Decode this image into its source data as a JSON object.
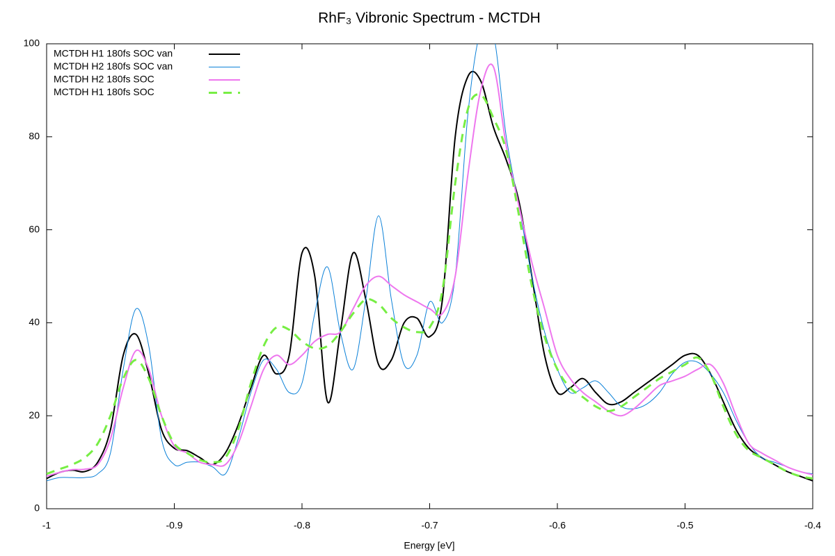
{
  "chart_data": {
    "type": "line",
    "title": "RhF₃ Vibronic Spectrum - MCTDH",
    "xlabel": "Energy [eV]",
    "x": [
      -1,
      -0.99,
      -0.98,
      -0.97,
      -0.96,
      -0.95,
      -0.94,
      -0.93,
      -0.92,
      -0.91,
      -0.9,
      -0.89,
      -0.88,
      -0.87,
      -0.86,
      -0.85,
      -0.84,
      -0.83,
      -0.82,
      -0.81,
      -0.8,
      -0.79,
      -0.78,
      -0.77,
      -0.76,
      -0.75,
      -0.74,
      -0.73,
      -0.72,
      -0.71,
      -0.7,
      -0.69,
      -0.68,
      -0.67,
      -0.66,
      -0.65,
      -0.64,
      -0.63,
      -0.62,
      -0.61,
      -0.6,
      -0.59,
      -0.58,
      -0.57,
      -0.56,
      -0.55,
      -0.54,
      -0.53,
      -0.52,
      -0.51,
      -0.5,
      -0.49,
      -0.48,
      -0.47,
      -0.46,
      -0.45,
      -0.44,
      -0.43,
      -0.42,
      -0.41,
      -0.4
    ],
    "series": [
      {
        "name": "MCTDH H1 180fs SOC van",
        "color": "#000000",
        "width": 2,
        "dashed": false,
        "values": [
          6.5,
          7.8,
          8.3,
          8.0,
          10,
          17,
          33,
          37.5,
          29,
          17,
          13,
          12.5,
          11,
          9.5,
          12,
          18,
          26,
          33,
          29,
          33,
          55,
          50,
          23,
          38,
          55,
          45,
          31,
          32,
          40,
          41,
          37,
          45,
          80,
          93,
          92,
          82,
          75,
          66,
          50,
          33,
          25,
          26,
          28,
          25,
          22.5,
          23,
          25,
          27,
          29,
          31,
          33,
          33,
          29,
          23,
          17,
          13,
          11,
          9.5,
          8,
          7,
          6
        ]
      },
      {
        "name": "MCTDH H2 180fs SOC van",
        "color": "#0a80d8",
        "width": 1,
        "dashed": false,
        "values": [
          6,
          6.7,
          6.7,
          6.7,
          7.5,
          12,
          30,
          43,
          35,
          15,
          9.5,
          10,
          10,
          9,
          7.5,
          15,
          25,
          32,
          30,
          25,
          27,
          42,
          52,
          38,
          30,
          45,
          63,
          45,
          31,
          33,
          44.5,
          40,
          50,
          85,
          103,
          102,
          80,
          65,
          50,
          38,
          30,
          25,
          26,
          27.5,
          25,
          22,
          21.5,
          22.5,
          25,
          29,
          31.5,
          31.5,
          29,
          25,
          19,
          14,
          11,
          10,
          9,
          8,
          7.5
        ]
      },
      {
        "name": "MCTDH H2 180fs SOC",
        "color": "#ee77ee",
        "width": 2,
        "dashed": false,
        "values": [
          7,
          7.8,
          8.4,
          8.5,
          9.5,
          15,
          26,
          34,
          30,
          20,
          13.5,
          12,
          10,
          9.5,
          9.5,
          14,
          22,
          30,
          33,
          31,
          33,
          36,
          37.5,
          38,
          43,
          48,
          50,
          48,
          46,
          44.5,
          43,
          42,
          50,
          72,
          90,
          95,
          78,
          65,
          53,
          43,
          33,
          28,
          25,
          23,
          21,
          20,
          21.5,
          24,
          26.5,
          27.5,
          28.5,
          30,
          31,
          27,
          20,
          14,
          12,
          10.5,
          9,
          8,
          7.3
        ]
      },
      {
        "name": "MCTDH H1 180fs SOC",
        "color": "#77ee44",
        "width": 3,
        "dashed": true,
        "values": [
          7.5,
          8.5,
          9.5,
          11,
          14,
          20,
          28,
          32,
          28,
          20,
          14,
          12,
          10.5,
          10,
          11,
          17,
          27,
          35,
          39,
          38.5,
          36,
          34.5,
          35,
          38,
          42,
          45,
          44,
          41,
          39,
          38,
          39,
          47,
          70,
          86,
          89,
          84,
          77,
          63,
          48,
          37,
          30,
          26,
          24,
          22,
          21,
          22,
          24,
          26,
          28,
          29.5,
          31,
          32.5,
          29,
          22,
          16,
          12.5,
          11,
          9.5,
          8,
          7,
          6.5
        ]
      }
    ],
    "xlim": [
      -1,
      -0.4
    ],
    "xticks": [
      -1,
      -0.9,
      -0.8,
      -0.7,
      -0.6,
      -0.5,
      -0.4
    ],
    "ylim": [
      0,
      100
    ],
    "yticks": [
      0,
      20,
      40,
      60,
      80,
      100
    ],
    "legend": "top-left"
  }
}
